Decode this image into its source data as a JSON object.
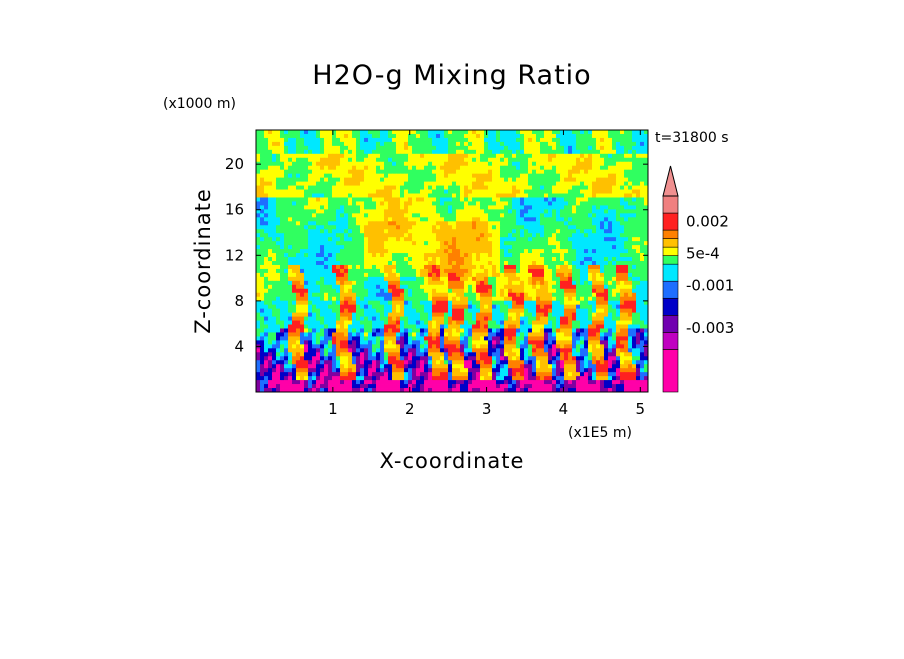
{
  "chart_data": {
    "type": "heatmap",
    "title": "H2O-g Mixing Ratio",
    "xlabel": "X-coordinate",
    "ylabel": "Z-coordinate",
    "x_unit": "(x1E5 m)",
    "y_unit": "(x1000 m)",
    "time_label": "t=31800 s",
    "xlim": [
      0,
      5.1
    ],
    "ylim": [
      0,
      23
    ],
    "x_ticks": [
      1,
      2,
      3,
      4,
      5
    ],
    "y_ticks": [
      4,
      8,
      12,
      16,
      20
    ],
    "x_tick_labels": [
      "1",
      "2",
      "3",
      "4",
      "5"
    ],
    "y_tick_labels": [
      "4",
      "8",
      "12",
      "16",
      "20"
    ],
    "colorbar": {
      "labels": [
        {
          "text": "0.002",
          "value": 0.002
        },
        {
          "text": "5e-4",
          "value": 0.0005
        },
        {
          "text": "-0.001",
          "value": -0.001
        },
        {
          "text": "-0.003",
          "value": -0.003
        }
      ],
      "levels": [
        {
          "color": "#ff00a8",
          "min": -0.006,
          "max": -0.004
        },
        {
          "color": "#c000c0",
          "min": -0.004,
          "max": -0.0032
        },
        {
          "color": "#7000b0",
          "min": -0.0032,
          "max": -0.0024
        },
        {
          "color": "#0000c8",
          "min": -0.0024,
          "max": -0.0016
        },
        {
          "color": "#1e6eff",
          "min": -0.0016,
          "max": -0.0008
        },
        {
          "color": "#00e8ff",
          "min": -0.0008,
          "max": 0
        },
        {
          "color": "#30ff60",
          "min": 0,
          "max": 0.0004
        },
        {
          "color": "#ffff00",
          "min": 0.0004,
          "max": 0.0008
        },
        {
          "color": "#ffc000",
          "min": 0.0008,
          "max": 0.0012
        },
        {
          "color": "#ff8000",
          "min": 0.0012,
          "max": 0.0016
        },
        {
          "color": "#ff2020",
          "min": 0.0016,
          "max": 0.0024
        },
        {
          "color": "#f08080",
          "min": 0.0024,
          "max": 0.0032
        }
      ],
      "overflow_color": "#f09090"
    },
    "colors": {
      "magenta": "#ff00a8",
      "purple": "#8000a0",
      "navy": "#0000c8",
      "blue": "#1e6eff",
      "cyan": "#00e8ff",
      "green": "#30ff60",
      "yellow": "#ffff00",
      "orange": "#ff8000",
      "red": "#ff2020"
    }
  }
}
